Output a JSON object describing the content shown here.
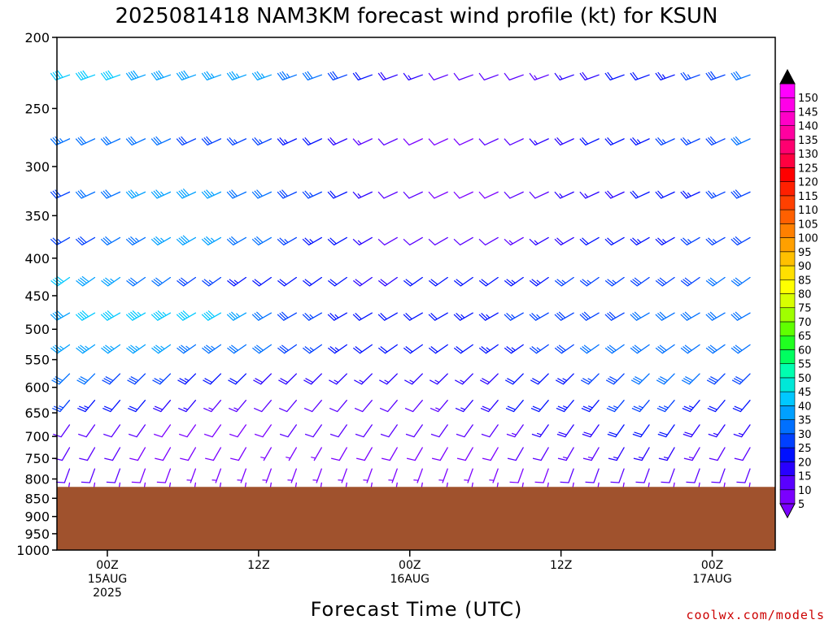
{
  "chart_data": {
    "type": "wind-barbs",
    "title": "2025081418 NAM3KM forecast wind profile (kt) for KSUN",
    "xlabel": "Forecast Time (UTC)",
    "ylabel": "",
    "y_scale": "log-pressure",
    "ylim": [
      1000,
      200
    ],
    "y_ticks": [
      "200",
      "250",
      "300",
      "350",
      "400",
      "450",
      "500",
      "550",
      "600",
      "650",
      "700",
      "750",
      "800",
      "850",
      "900",
      "950",
      "1000"
    ],
    "x_range_hours": [
      -4,
      53
    ],
    "x_ticks": [
      {
        "hour": 0,
        "line1": "00Z",
        "line2": "15AUG",
        "line3": "2025"
      },
      {
        "hour": 12,
        "line1": "12Z",
        "line2": "",
        "line3": ""
      },
      {
        "hour": 24,
        "line1": "00Z",
        "line2": "16AUG",
        "line3": ""
      },
      {
        "hour": 36,
        "line1": "12Z",
        "line2": "",
        "line3": ""
      },
      {
        "hour": 48,
        "line1": "00Z",
        "line2": "17AUG",
        "line3": ""
      }
    ],
    "grid": false,
    "ground_color": "#a0522d",
    "ground_surface_hpa": 820,
    "levels_hpa": [
      225,
      275,
      325,
      375,
      425,
      475,
      525,
      575,
      625,
      675,
      725,
      775,
      810
    ],
    "forecast_hours_start": -3,
    "forecast_hours_step": 2,
    "forecast_count": 29,
    "wind_series": [
      {
        "level_hpa": 225,
        "dir_deg": 250,
        "speed_kt": [
          40,
          40,
          40,
          38,
          38,
          38,
          36,
          36,
          35,
          33,
          30,
          28,
          22,
          18,
          15,
          12,
          10,
          10,
          12,
          14,
          16,
          18,
          20,
          22,
          24,
          26,
          28,
          30,
          32
        ]
      },
      {
        "level_hpa": 275,
        "dir_deg": 245,
        "speed_kt": [
          33,
          32,
          32,
          30,
          30,
          28,
          28,
          26,
          25,
          24,
          22,
          18,
          14,
          10,
          8,
          8,
          8,
          10,
          12,
          15,
          18,
          20,
          22,
          24,
          26,
          26,
          28,
          30,
          32
        ]
      },
      {
        "level_hpa": 325,
        "dir_deg": 245,
        "speed_kt": [
          28,
          30,
          32,
          35,
          36,
          38,
          36,
          32,
          30,
          28,
          25,
          20,
          15,
          12,
          10,
          8,
          8,
          8,
          10,
          12,
          15,
          16,
          18,
          20,
          22,
          24,
          26,
          28,
          30
        ]
      },
      {
        "level_hpa": 375,
        "dir_deg": 240,
        "speed_kt": [
          25,
          28,
          30,
          34,
          36,
          38,
          36,
          32,
          30,
          26,
          24,
          20,
          16,
          12,
          10,
          10,
          10,
          12,
          14,
          16,
          18,
          20,
          22,
          24,
          24,
          26,
          26,
          28,
          30
        ]
      },
      {
        "level_hpa": 425,
        "dir_deg": 235,
        "speed_kt": [
          40,
          38,
          36,
          32,
          30,
          28,
          26,
          24,
          22,
          22,
          20,
          20,
          18,
          18,
          20,
          20,
          22,
          22,
          24,
          24,
          26,
          26,
          26,
          28,
          28,
          28,
          30,
          30,
          30
        ]
      },
      {
        "level_hpa": 475,
        "dir_deg": 240,
        "speed_kt": [
          38,
          40,
          42,
          44,
          44,
          42,
          40,
          36,
          32,
          28,
          26,
          24,
          22,
          22,
          22,
          22,
          24,
          24,
          26,
          26,
          28,
          28,
          28,
          30,
          30,
          30,
          30,
          30,
          32
        ]
      },
      {
        "level_hpa": 525,
        "dir_deg": 235,
        "speed_kt": [
          35,
          36,
          36,
          36,
          36,
          34,
          34,
          32,
          30,
          28,
          26,
          24,
          22,
          22,
          22,
          22,
          22,
          24,
          24,
          26,
          28,
          30,
          30,
          32,
          32,
          32,
          32,
          32,
          34
        ]
      },
      {
        "level_hpa": 575,
        "dir_deg": 225,
        "speed_kt": [
          32,
          30,
          28,
          28,
          26,
          24,
          22,
          20,
          18,
          18,
          18,
          16,
          16,
          16,
          15,
          15,
          16,
          18,
          20,
          22,
          24,
          26,
          28,
          30,
          32,
          30,
          28,
          28,
          30
        ]
      },
      {
        "level_hpa": 625,
        "dir_deg": 220,
        "speed_kt": [
          26,
          24,
          22,
          20,
          18,
          16,
          14,
          14,
          12,
          12,
          12,
          12,
          12,
          12,
          12,
          14,
          16,
          18,
          20,
          22,
          24,
          24,
          26,
          26,
          26,
          24,
          22,
          22,
          24
        ]
      },
      {
        "level_hpa": 675,
        "dir_deg": 215,
        "speed_kt": [
          12,
          12,
          10,
          10,
          8,
          8,
          8,
          8,
          8,
          10,
          10,
          10,
          10,
          10,
          10,
          10,
          10,
          12,
          14,
          16,
          18,
          18,
          20,
          20,
          20,
          18,
          16,
          16,
          18
        ]
      },
      {
        "level_hpa": 725,
        "dir_deg": 210,
        "speed_kt": [
          12,
          10,
          10,
          8,
          8,
          8,
          8,
          8,
          6,
          6,
          6,
          8,
          8,
          8,
          8,
          8,
          8,
          8,
          10,
          12,
          14,
          14,
          16,
          16,
          16,
          14,
          12,
          12,
          14
        ]
      },
      {
        "level_hpa": 775,
        "dir_deg": 200,
        "speed_kt": [
          10,
          10,
          10,
          8,
          8,
          6,
          6,
          6,
          6,
          6,
          6,
          6,
          6,
          6,
          6,
          6,
          6,
          6,
          8,
          8,
          10,
          10,
          10,
          12,
          12,
          10,
          10,
          10,
          10
        ]
      },
      {
        "level_hpa": 810,
        "dir_deg": 190,
        "speed_kt": [
          8,
          8,
          8,
          6,
          6,
          6,
          6,
          6,
          6,
          6,
          6,
          6,
          6,
          6,
          6,
          6,
          6,
          6,
          6,
          6,
          6,
          8,
          8,
          8,
          8,
          8,
          8,
          8,
          8
        ]
      }
    ],
    "colorbar": {
      "labels": [
        "5",
        "10",
        "15",
        "20",
        "25",
        "30",
        "35",
        "40",
        "45",
        "50",
        "55",
        "60",
        "65",
        "70",
        "75",
        "80",
        "85",
        "90",
        "95",
        "100",
        "105",
        "110",
        "115",
        "120",
        "125",
        "130",
        "135",
        "140",
        "145",
        "150"
      ],
      "colors": [
        "#7b00ff",
        "#5a00ff",
        "#2800ff",
        "#0010ff",
        "#0040ff",
        "#0070ff",
        "#00a0ff",
        "#00c8ff",
        "#00e8d8",
        "#00ffb0",
        "#00ff60",
        "#20ff20",
        "#60ff00",
        "#a0ff00",
        "#d8ff00",
        "#ffff00",
        "#ffe000",
        "#ffc000",
        "#ffa000",
        "#ff8000",
        "#ff6000",
        "#ff4000",
        "#ff2000",
        "#ff0000",
        "#ff0040",
        "#ff0070",
        "#ff00a0",
        "#ff00c8",
        "#ff00e8",
        "#ff00ff"
      ]
    }
  },
  "watermark": "coolwx.com/models"
}
